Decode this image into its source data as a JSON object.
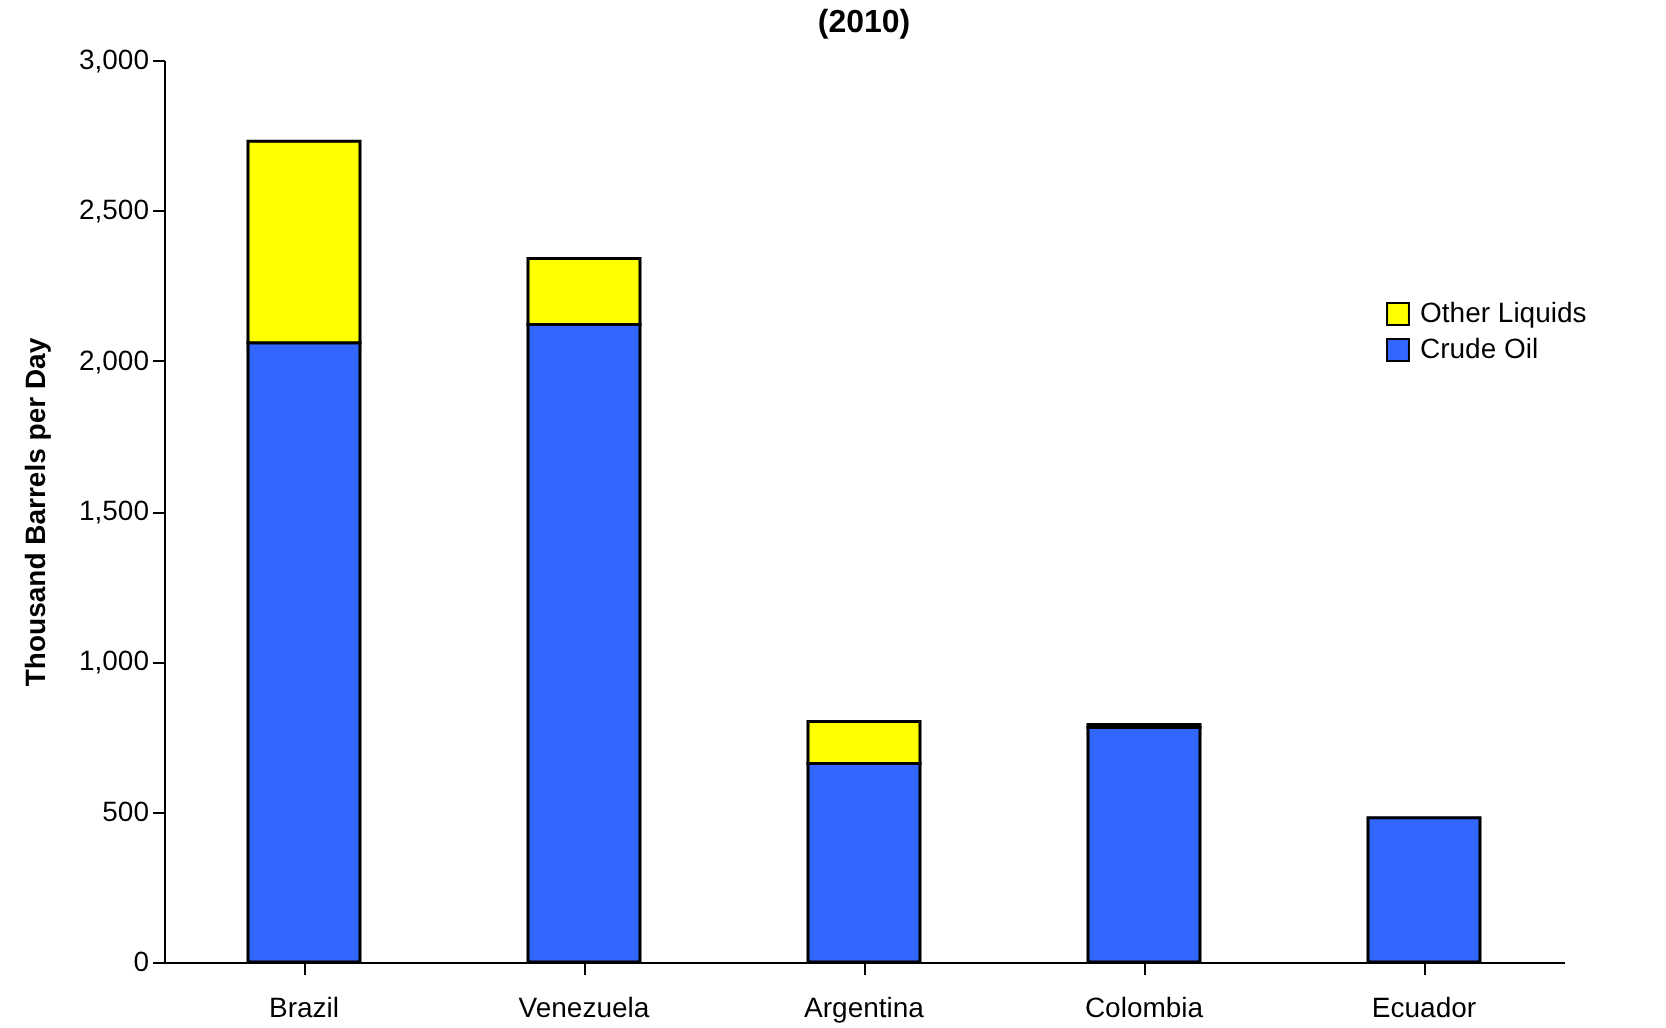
{
  "chart_data": {
    "type": "bar",
    "title": "(2010)",
    "ylabel": "Thousand Barrels per Day",
    "categories": [
      "Brazil",
      "Venezuela",
      "Argentina",
      "Colombia",
      "Ecuador"
    ],
    "stacked": true,
    "series": [
      {
        "name": "Crude Oil",
        "color": "#3366ff",
        "values": [
          2060,
          2120,
          660,
          780,
          480
        ]
      },
      {
        "name": "Other Liquids",
        "color": "#ffff00",
        "values": [
          670,
          220,
          140,
          10,
          null
        ]
      }
    ],
    "ylim": [
      0,
      3000
    ],
    "yticks": [
      0,
      500,
      {
        "value": 1000,
        "label": "1,000"
      },
      {
        "value": 1500,
        "label": "1,500"
      },
      {
        "value": 2000,
        "label": "2,000"
      },
      {
        "value": 2500,
        "label": "2,500"
      },
      {
        "value": 3000,
        "label": "3,000"
      }
    ],
    "grid": false,
    "legend": "right"
  }
}
